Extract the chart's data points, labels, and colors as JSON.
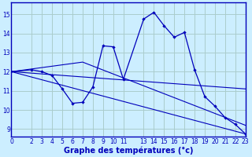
{
  "xlabel": "Graphe des températures (°c)",
  "bg_color": "#cceeff",
  "grid_color": "#aacccc",
  "line_color": "#0000bb",
  "spine_color": "#0000bb",
  "x_ticks": [
    0,
    2,
    3,
    4,
    5,
    6,
    7,
    8,
    9,
    10,
    11,
    13,
    14,
    15,
    16,
    17,
    18,
    19,
    20,
    21,
    22,
    23
  ],
  "series": [
    {
      "x": [
        0,
        2,
        3,
        4,
        5,
        6,
        7,
        8,
        9,
        10,
        11,
        13,
        14,
        15,
        16,
        17,
        18,
        19,
        20,
        21,
        22,
        23
      ],
      "y": [
        12.0,
        12.1,
        12.0,
        11.8,
        11.1,
        10.35,
        10.4,
        11.2,
        13.35,
        13.3,
        11.6,
        14.75,
        15.1,
        14.4,
        13.8,
        14.05,
        12.1,
        10.7,
        10.2,
        9.6,
        9.25,
        8.75
      ],
      "marker": true
    },
    {
      "x": [
        0,
        23
      ],
      "y": [
        12.0,
        8.75
      ],
      "marker": false
    },
    {
      "x": [
        0,
        23
      ],
      "y": [
        12.0,
        11.1
      ],
      "marker": false
    },
    {
      "x": [
        0,
        7,
        23
      ],
      "y": [
        12.0,
        12.5,
        9.2
      ],
      "marker": false
    }
  ],
  "ylim": [
    8.6,
    15.6
  ],
  "xlim": [
    0,
    23
  ],
  "yticks": [
    9,
    10,
    11,
    12,
    13,
    14,
    15
  ],
  "tick_fontsize": 5.5,
  "xlabel_fontsize": 7
}
